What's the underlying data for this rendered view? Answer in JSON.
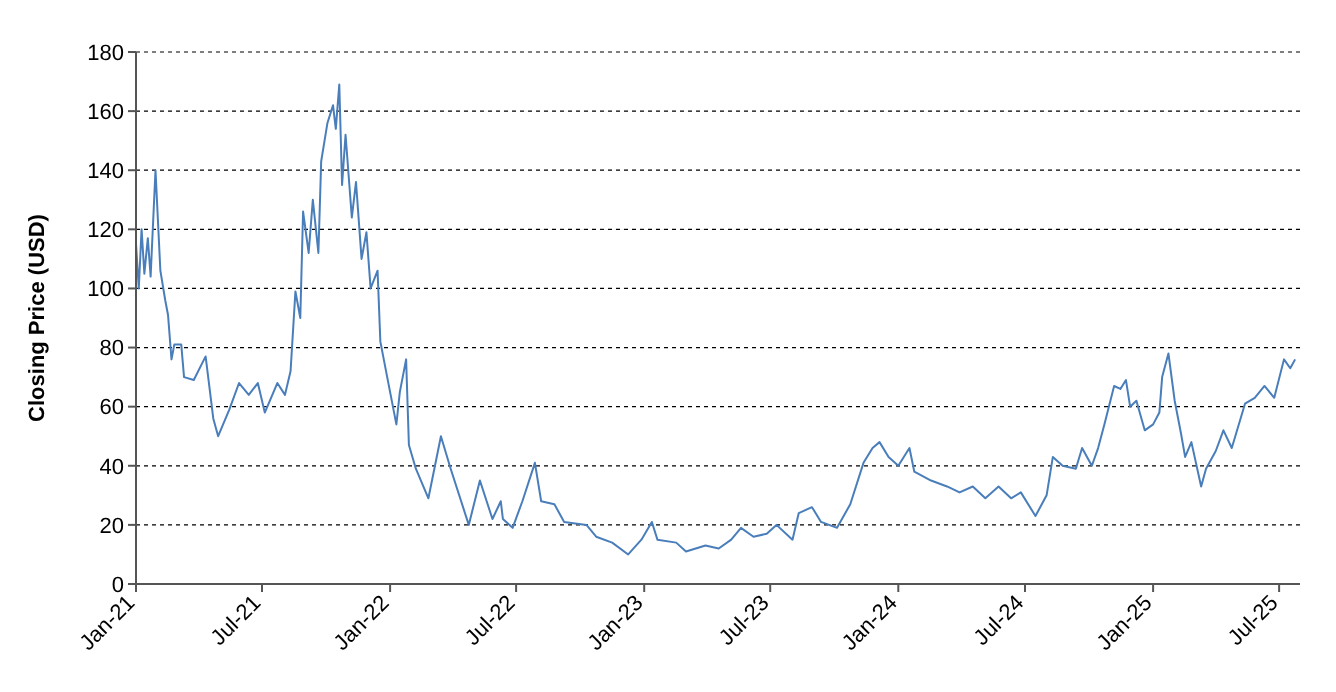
{
  "chart_data": {
    "type": "line",
    "ylabel": "Closing Price (USD)",
    "xlim": [
      "2021-01-01",
      "2025-07-31"
    ],
    "xticks": [
      {
        "value": "2021-01-01",
        "label": "Jan-21"
      },
      {
        "value": "2021-07-01",
        "label": "Jul-21"
      },
      {
        "value": "2022-01-01",
        "label": "Jan-22"
      },
      {
        "value": "2022-07-01",
        "label": "Jul-22"
      },
      {
        "value": "2023-01-01",
        "label": "Jan-23"
      },
      {
        "value": "2023-07-01",
        "label": "Jul-23"
      },
      {
        "value": "2024-01-01",
        "label": "Jan-24"
      },
      {
        "value": "2024-07-01",
        "label": "Jul-24"
      },
      {
        "value": "2025-01-01",
        "label": "Jan-25"
      },
      {
        "value": "2025-07-01",
        "label": "Jul-25"
      }
    ],
    "ylim": [
      0,
      180
    ],
    "yticks": [
      0,
      20,
      40,
      60,
      80,
      100,
      120,
      140,
      160,
      180
    ],
    "grid": "y",
    "marker": "none",
    "line_style": "solid",
    "series": [
      {
        "color": "#4a7ebb",
        "x": [
          "2021-01-01",
          "2021-01-05",
          "2021-01-09",
          "2021-01-13",
          "2021-01-18",
          "2021-01-22",
          "2021-01-29",
          "2021-02-05",
          "2021-02-12",
          "2021-02-16",
          "2021-02-21",
          "2021-02-25",
          "2021-03-07",
          "2021-03-11",
          "2021-03-25",
          "2021-04-11",
          "2021-04-22",
          "2021-04-29",
          "2021-05-15",
          "2021-05-29",
          "2021-06-12",
          "2021-06-25",
          "2021-07-05",
          "2021-07-23",
          "2021-08-03",
          "2021-08-11",
          "2021-08-18",
          "2021-08-25",
          "2021-08-29",
          "2021-09-06",
          "2021-09-12",
          "2021-09-20",
          "2021-09-24",
          "2021-10-03",
          "2021-10-11",
          "2021-10-15",
          "2021-10-20",
          "2021-10-24",
          "2021-10-29",
          "2021-11-07",
          "2021-11-13",
          "2021-11-21",
          "2021-11-28",
          "2021-12-04",
          "2021-12-14",
          "2021-12-18",
          "2021-12-27",
          "2022-01-10",
          "2022-01-15",
          "2022-01-24",
          "2022-01-28",
          "2022-02-07",
          "2022-02-25",
          "2022-03-15",
          "2022-03-29",
          "2022-04-24",
          "2022-05-10",
          "2022-05-28",
          "2022-06-09",
          "2022-06-12",
          "2022-06-26",
          "2022-07-10",
          "2022-07-28",
          "2022-08-06",
          "2022-08-25",
          "2022-09-08",
          "2022-10-10",
          "2022-10-24",
          "2022-11-16",
          "2022-12-09",
          "2022-12-28",
          "2023-01-12",
          "2023-01-20",
          "2023-02-16",
          "2023-03-02",
          "2023-03-30",
          "2023-04-18",
          "2023-05-06",
          "2023-05-20",
          "2023-06-07",
          "2023-06-26",
          "2023-07-10",
          "2023-08-02",
          "2023-08-11",
          "2023-08-30",
          "2023-09-12",
          "2023-10-05",
          "2023-10-24",
          "2023-11-12",
          "2023-11-25",
          "2023-12-05",
          "2023-12-18",
          "2024-01-01",
          "2024-01-17",
          "2024-01-24",
          "2024-02-17",
          "2024-03-11",
          "2024-03-29",
          "2024-04-17",
          "2024-05-05",
          "2024-05-24",
          "2024-06-11",
          "2024-06-25",
          "2024-07-16",
          "2024-08-01",
          "2024-08-10",
          "2024-08-24",
          "2024-09-12",
          "2024-09-21",
          "2024-10-05",
          "2024-10-14",
          "2024-10-23",
          "2024-11-06",
          "2024-11-15",
          "2024-11-23",
          "2024-11-29",
          "2024-12-08",
          "2024-12-20",
          "2025-01-01",
          "2025-01-10",
          "2025-01-14",
          "2025-01-23",
          "2025-02-01",
          "2025-02-10",
          "2025-02-16",
          "2025-02-25",
          "2025-03-11",
          "2025-03-18",
          "2025-04-01",
          "2025-04-12",
          "2025-04-24",
          "2025-05-13",
          "2025-05-27",
          "2025-06-10",
          "2025-06-24",
          "2025-07-08",
          "2025-07-17",
          "2025-07-24"
        ],
        "values": [
          115,
          100,
          120,
          105,
          117,
          104,
          140,
          106,
          96,
          91,
          76,
          81,
          81,
          70,
          69,
          77,
          56,
          50,
          59,
          68,
          64,
          68,
          58,
          68,
          64,
          72,
          99,
          90,
          126,
          112,
          130,
          112,
          143,
          156,
          162,
          154,
          169,
          135,
          152,
          124,
          136,
          110,
          119,
          100,
          106,
          82,
          71,
          54,
          65,
          76,
          47,
          39,
          29,
          50,
          39,
          20,
          35,
          22,
          28,
          22,
          19,
          28,
          41,
          28,
          27,
          21,
          20,
          16,
          14,
          10,
          15,
          21,
          15,
          14,
          11,
          13,
          12,
          15,
          19,
          16,
          17,
          20,
          15,
          24,
          26,
          21,
          19,
          27,
          41,
          46,
          48,
          43,
          40,
          46,
          38,
          35,
          33,
          31,
          33,
          29,
          33,
          29,
          31,
          23,
          30,
          43,
          40,
          39,
          46,
          40,
          46,
          54,
          67,
          66,
          69,
          60,
          62,
          52,
          54,
          58,
          70,
          78,
          62,
          51,
          43,
          48,
          33,
          39,
          45,
          52,
          46,
          61,
          63,
          67,
          63,
          76,
          73,
          76
        ]
      }
    ]
  }
}
